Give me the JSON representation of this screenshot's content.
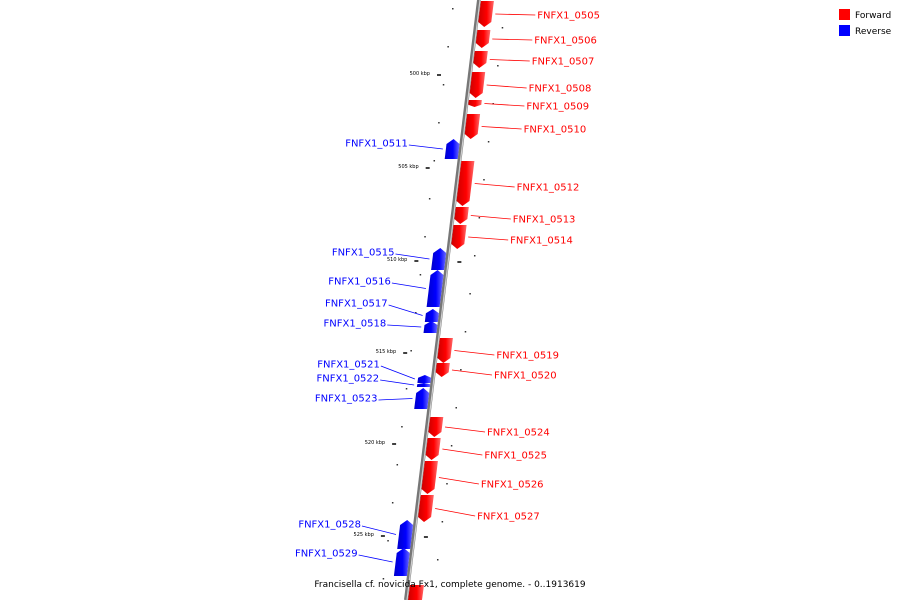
{
  "caption": "Francisella cf. novicida Fx1, complete genome. - 0..1913619",
  "legend": [
    {
      "label": "Forward",
      "color": "#ff0000"
    },
    {
      "label": "Reverse",
      "color": "#0000ff"
    }
  ],
  "scale_ticks": [
    {
      "label": "500 kbp",
      "pos": 500000
    },
    {
      "label": "505 kbp",
      "pos": 505000
    },
    {
      "label": "510 kbp",
      "pos": 510000
    },
    {
      "label": "515 kbp",
      "pos": 515000
    },
    {
      "label": "520 kbp",
      "pos": 520000
    },
    {
      "label": "525 kbp",
      "pos": 525000
    }
  ],
  "genes": [
    {
      "id": "FNFX1_0505",
      "strand": "forward"
    },
    {
      "id": "FNFX1_0506",
      "strand": "forward"
    },
    {
      "id": "FNFX1_0507",
      "strand": "forward"
    },
    {
      "id": "FNFX1_0508",
      "strand": "forward"
    },
    {
      "id": "FNFX1_0509",
      "strand": "forward"
    },
    {
      "id": "FNFX1_0510",
      "strand": "forward"
    },
    {
      "id": "FNFX1_0511",
      "strand": "reverse"
    },
    {
      "id": "FNFX1_0512",
      "strand": "forward"
    },
    {
      "id": "FNFX1_0513",
      "strand": "forward"
    },
    {
      "id": "FNFX1_0514",
      "strand": "forward"
    },
    {
      "id": "FNFX1_0515",
      "strand": "reverse"
    },
    {
      "id": "FNFX1_0516",
      "strand": "reverse"
    },
    {
      "id": "FNFX1_0517",
      "strand": "reverse"
    },
    {
      "id": "FNFX1_0518",
      "strand": "reverse"
    },
    {
      "id": "FNFX1_0519",
      "strand": "forward"
    },
    {
      "id": "FNFX1_0520",
      "strand": "forward"
    },
    {
      "id": "FNFX1_0521",
      "strand": "reverse"
    },
    {
      "id": "FNFX1_0522",
      "strand": "reverse"
    },
    {
      "id": "FNFX1_0523",
      "strand": "reverse"
    },
    {
      "id": "FNFX1_0524",
      "strand": "forward"
    },
    {
      "id": "FNFX1_0525",
      "strand": "forward"
    },
    {
      "id": "FNFX1_0526",
      "strand": "forward"
    },
    {
      "id": "FNFX1_0527",
      "strand": "forward"
    },
    {
      "id": "FNFX1_0528",
      "strand": "reverse"
    },
    {
      "id": "FNFX1_0529",
      "strand": "reverse"
    }
  ]
}
